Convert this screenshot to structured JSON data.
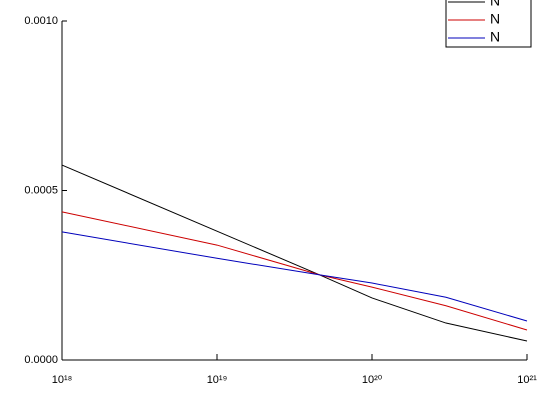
{
  "chart_data": {
    "type": "line",
    "log_x": true,
    "x": [
      1e+18,
      1e+19,
      4.6e+19,
      1e+20,
      3e+20,
      1e+21
    ],
    "series": [
      {
        "name": "N",
        "color": "#000000",
        "values": [
          0.000575,
          0.00038,
          0.000251,
          0.000183,
          0.000109,
          5.6e-05
        ]
      },
      {
        "name": "N",
        "color": "#cc0000",
        "values": [
          0.000437,
          0.000339,
          0.000251,
          0.000215,
          0.00016,
          8.85e-05
        ]
      },
      {
        "name": "N",
        "color": "#0000bb",
        "values": [
          0.000378,
          0.0003,
          0.000251,
          0.000227,
          0.000185,
          0.000115
        ]
      }
    ],
    "xlim": [
      1e+18,
      1e+21
    ],
    "xticks": [
      {
        "value": 1e+18,
        "label": "10¹⁸"
      },
      {
        "value": 1e+19,
        "label": "10¹⁹"
      },
      {
        "value": 1e+20,
        "label": "10²⁰"
      },
      {
        "value": 1e+21,
        "label": "10²¹"
      }
    ],
    "ylim": [
      0,
      0.001
    ],
    "yticks": [
      {
        "value": 0,
        "label": "0.0000"
      },
      {
        "value": 0.0005,
        "label": "0.0005"
      },
      {
        "value": 0.001,
        "label": "0.0010"
      }
    ],
    "legend": "upper right"
  }
}
